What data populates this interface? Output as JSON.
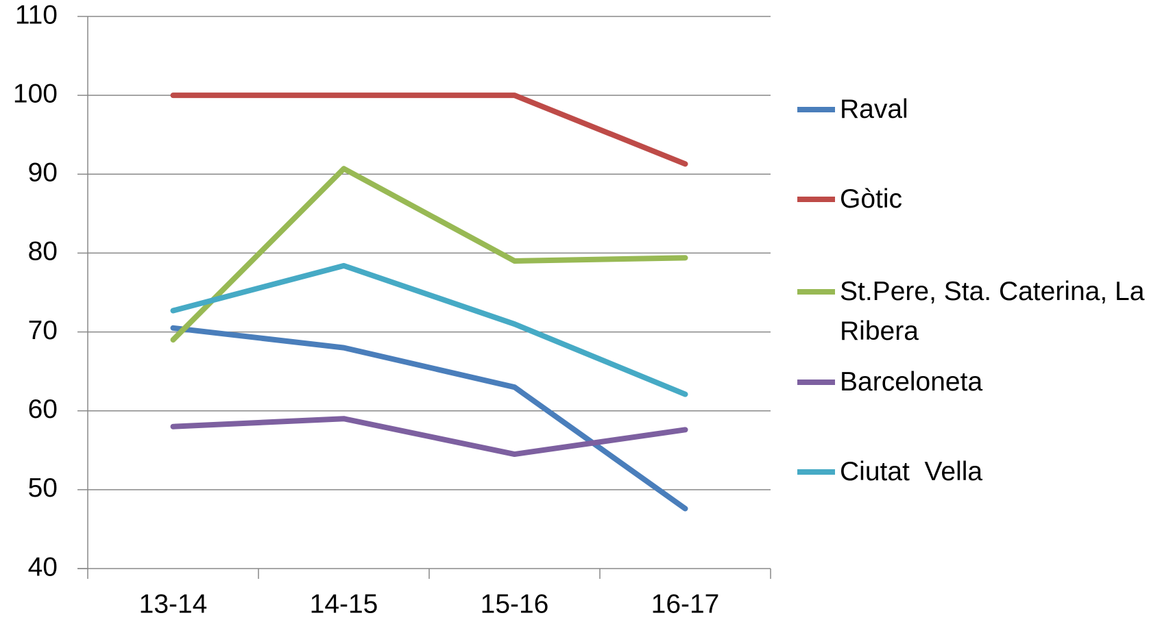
{
  "chart_data": {
    "type": "line",
    "categories": [
      "13-14",
      "14-15",
      "15-16",
      "16-17"
    ],
    "series": [
      {
        "name": "Raval",
        "color": "#4a7ebb",
        "values": [
          70.5,
          68,
          63,
          47.6
        ]
      },
      {
        "name": "Gòtic",
        "color": "#be4b48",
        "values": [
          100,
          100,
          100,
          91.3
        ]
      },
      {
        "name": "St.Pere, Sta. Caterina, La Ribera",
        "color": "#98b954",
        "values": [
          69,
          90.7,
          79,
          79.4
        ]
      },
      {
        "name": "Barceloneta",
        "color": "#7d60a0",
        "values": [
          58,
          59,
          54.5,
          57.6
        ]
      },
      {
        "name": "Ciutat  Vella",
        "color": "#46aac5",
        "values": [
          72.7,
          78.4,
          71,
          62.1
        ]
      }
    ],
    "ylim": [
      40,
      110
    ],
    "yticks": [
      40,
      50,
      60,
      70,
      80,
      90,
      100,
      110
    ],
    "grid": true,
    "legend": "right"
  }
}
